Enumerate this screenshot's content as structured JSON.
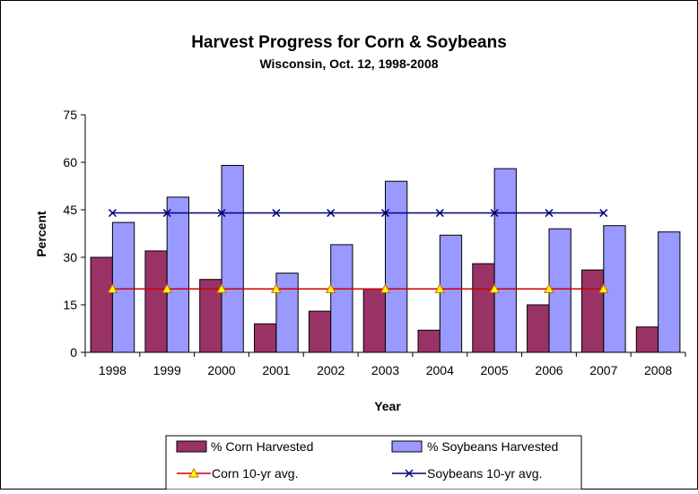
{
  "chart_data": {
    "type": "bar",
    "title": "Harvest Progress for Corn & Soybeans",
    "subtitle": "Wisconsin, Oct. 12, 1998-2008",
    "xlabel": "Year",
    "ylabel": "Percent",
    "ylim": [
      0,
      75
    ],
    "yticks": [
      "0",
      "15",
      "30",
      "45",
      "60",
      "75"
    ],
    "categories": [
      "1998",
      "1999",
      "2000",
      "2001",
      "2002",
      "2003",
      "2004",
      "2005",
      "2006",
      "2007",
      "2008"
    ],
    "grid": false,
    "legend_position": "bottom",
    "series": [
      {
        "name": "% Corn Harvested",
        "kind": "bar",
        "color": "#993366",
        "values": [
          30,
          32,
          23,
          9,
          13,
          20,
          7,
          28,
          15,
          26,
          8
        ]
      },
      {
        "name": "% Soybeans Harvested",
        "kind": "bar",
        "color": "#9999ff",
        "values": [
          41,
          49,
          59,
          25,
          34,
          54,
          37,
          58,
          39,
          40,
          38
        ]
      },
      {
        "name": "Corn 10-yr avg.",
        "kind": "line",
        "color": "#cc0000",
        "marker": "triangle",
        "marker_color": "#ffff00",
        "values": [
          20,
          20,
          20,
          20,
          20,
          20,
          20,
          20,
          20,
          20,
          null
        ]
      },
      {
        "name": "Soybeans 10-yr avg.",
        "kind": "line",
        "color": "#000080",
        "marker": "x",
        "values": [
          44,
          44,
          44,
          44,
          44,
          44,
          44,
          44,
          44,
          44,
          null
        ]
      }
    ]
  }
}
